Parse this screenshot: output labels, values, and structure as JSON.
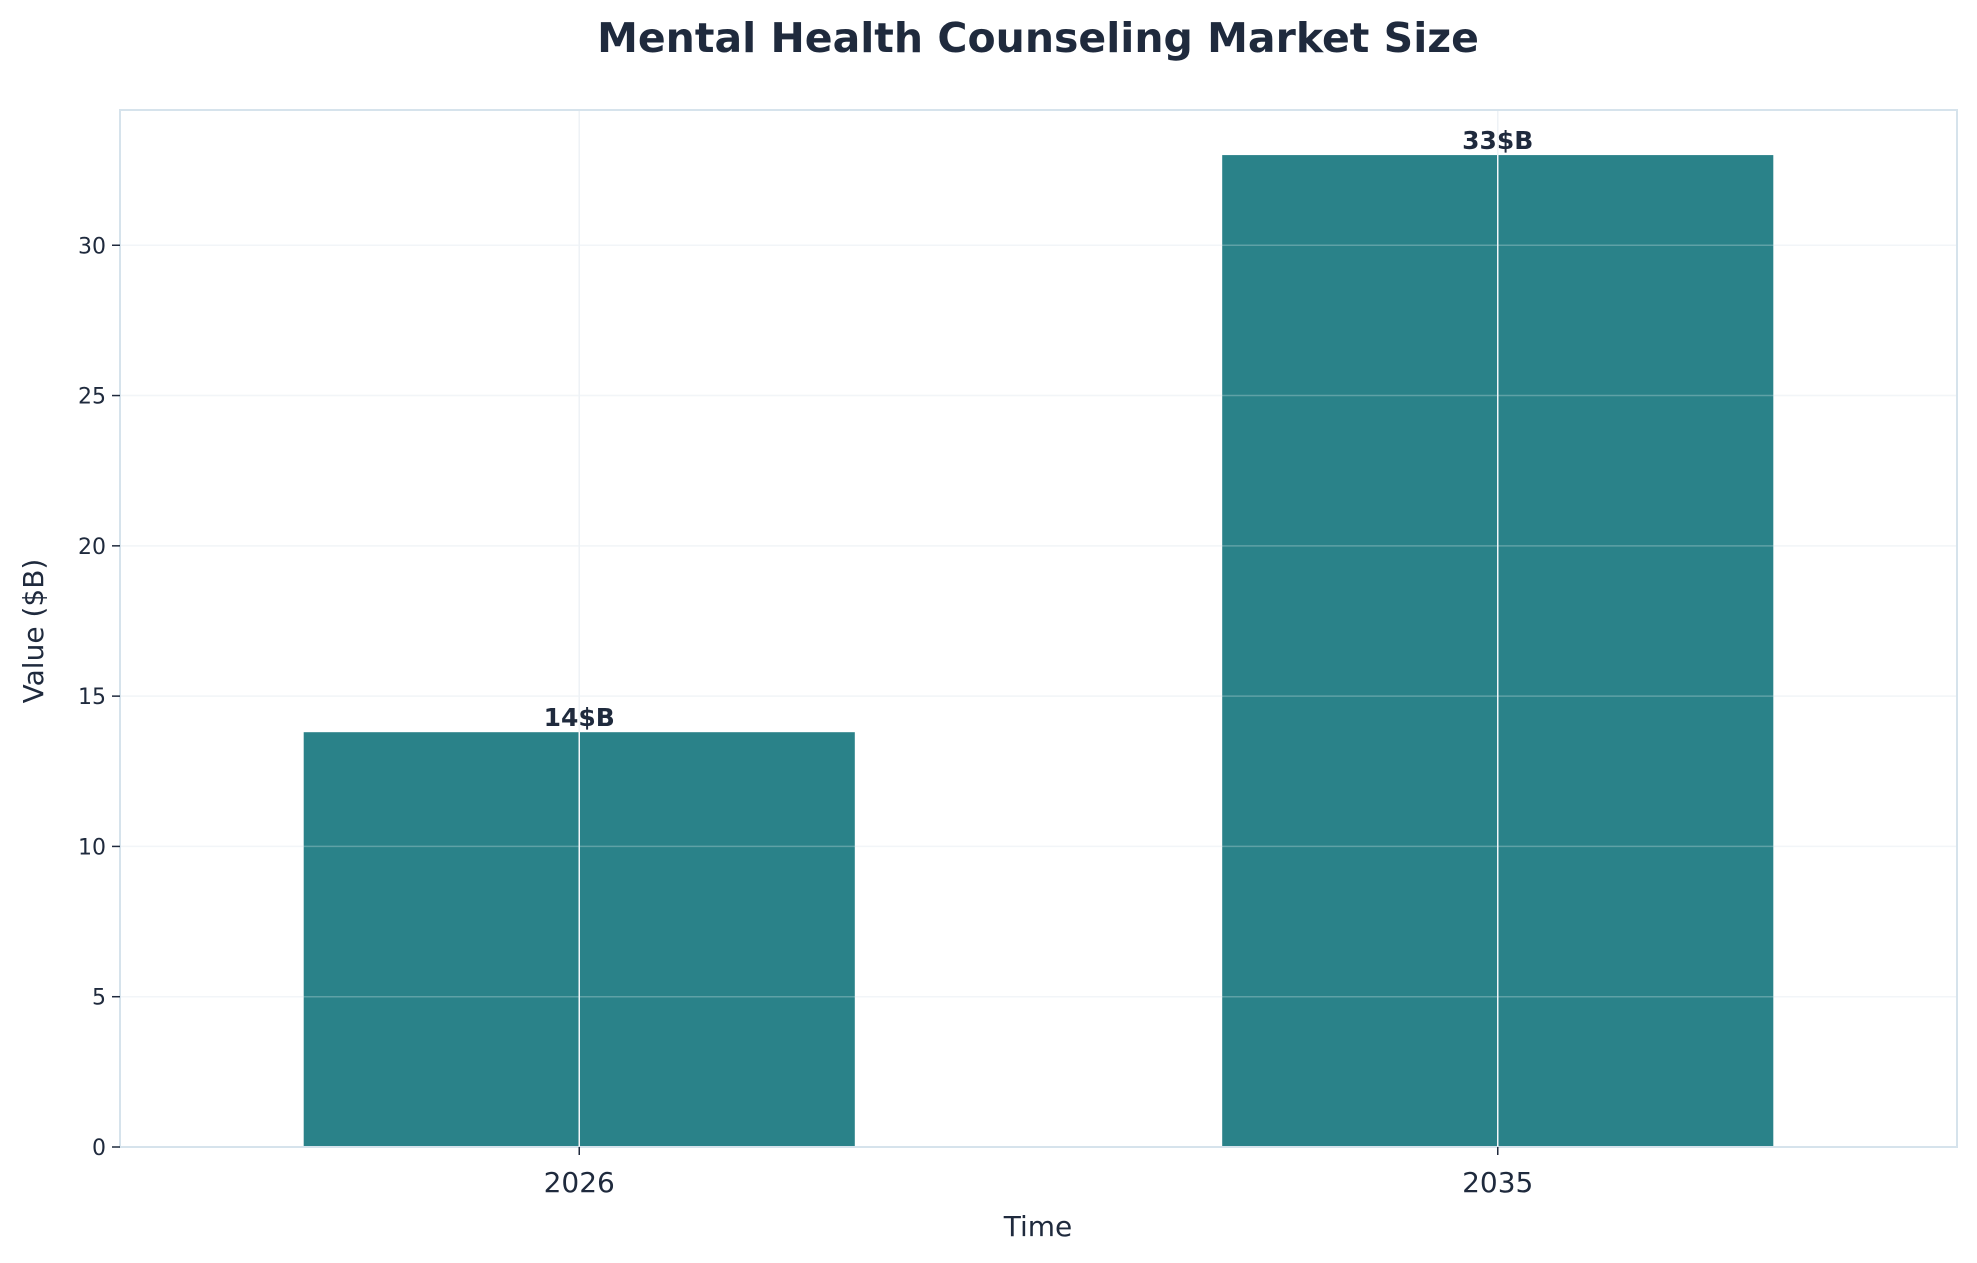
{
  "chart_data": {
    "type": "bar",
    "title": "Mental Health Counseling Market Size",
    "xlabel": "Time",
    "ylabel": "Value ($B)",
    "categories": [
      "2026",
      "2035"
    ],
    "values": [
      13.8,
      33.0
    ],
    "data_labels": [
      "14$B",
      "33$B"
    ],
    "ylim": [
      0,
      34.5
    ],
    "yticks": [
      0,
      5,
      10,
      15,
      20,
      25,
      30
    ],
    "grid": true,
    "legend": "none",
    "colors": {
      "bar": "#2a8289",
      "text": "#1f2a3d",
      "frame": "#d6e3ec",
      "grid": "#eef2f6"
    }
  }
}
